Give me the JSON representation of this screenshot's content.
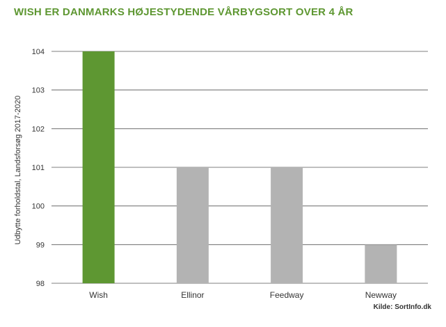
{
  "colors": {
    "title": "#5e9732",
    "highlight_bar": "#5e9732",
    "other_bar": "#b3b3b3",
    "grid": "#555555",
    "text": "#333333"
  },
  "chart_data": {
    "type": "bar",
    "title": "WISH ER DANMARKS HØJESTYDENDE VÅRBYGSORT OVER 4 ÅR",
    "xlabel": "",
    "ylabel": "Udbytte forholdstal, Landsforsøg 2017-2020",
    "categories": [
      "Wish",
      "Ellinor",
      "Feedway",
      "Newway"
    ],
    "values": [
      104,
      101,
      101,
      99
    ],
    "bar_colors": [
      "#5e9732",
      "#b3b3b3",
      "#b3b3b3",
      "#b3b3b3"
    ],
    "ylim": [
      98,
      104
    ],
    "yticks": [
      98,
      99,
      100,
      101,
      102,
      103,
      104
    ],
    "grid": true,
    "legend": "none",
    "source": "Kilde: SortInfo.dk"
  }
}
